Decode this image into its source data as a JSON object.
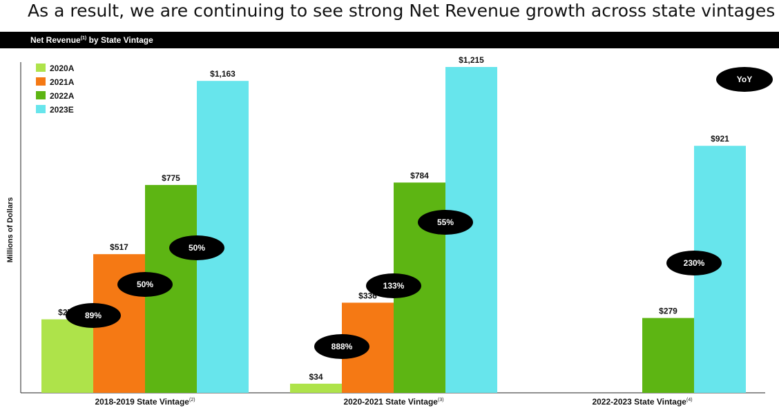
{
  "page": {
    "headline": "As a result, we are continuing to see strong Net Revenue growth across state vintages",
    "banner_title": "Net Revenue",
    "banner_sup": "(1)",
    "banner_suffix": " by State Vintage"
  },
  "chart_data": {
    "type": "bar",
    "ylabel": "Millions of Dollars",
    "ylim": [
      0,
      1215
    ],
    "categories": [
      {
        "label": "2018-2019 State Vintage",
        "note": "(2)"
      },
      {
        "label": "2020-2021 State Vintage",
        "note": "(3)"
      },
      {
        "label": "2022-2023 State Vintage",
        "note": "(4)"
      }
    ],
    "series": [
      {
        "name": "2020A",
        "color": "#aee34a",
        "values": [
          274,
          34,
          null
        ],
        "labels": [
          "$274",
          "$34",
          ""
        ]
      },
      {
        "name": "2021A",
        "color": "#f57914",
        "values": [
          517,
          336,
          null
        ],
        "labels": [
          "$517",
          "$336",
          ""
        ]
      },
      {
        "name": "2022A",
        "color": "#5db513",
        "values": [
          775,
          784,
          279
        ],
        "labels": [
          "$775",
          "$784",
          "$279"
        ]
      },
      {
        "name": "2023E",
        "color": "#67e5ec",
        "values": [
          1163,
          1215,
          921
        ],
        "labels": [
          "$1,163",
          "$1,215",
          "$921"
        ]
      }
    ],
    "legend_placement": "top-left",
    "growth_badges": [
      {
        "category": 0,
        "series": 1,
        "text": "89%"
      },
      {
        "category": 0,
        "series": 2,
        "text": "50%"
      },
      {
        "category": 0,
        "series": 3,
        "text": "50%"
      },
      {
        "category": 1,
        "series": 1,
        "text": "888%"
      },
      {
        "category": 1,
        "series": 2,
        "text": "133%"
      },
      {
        "category": 1,
        "series": 3,
        "text": "55%"
      },
      {
        "category": 2,
        "series": 3,
        "text": "230%"
      }
    ],
    "yoy_label": "YoY"
  }
}
